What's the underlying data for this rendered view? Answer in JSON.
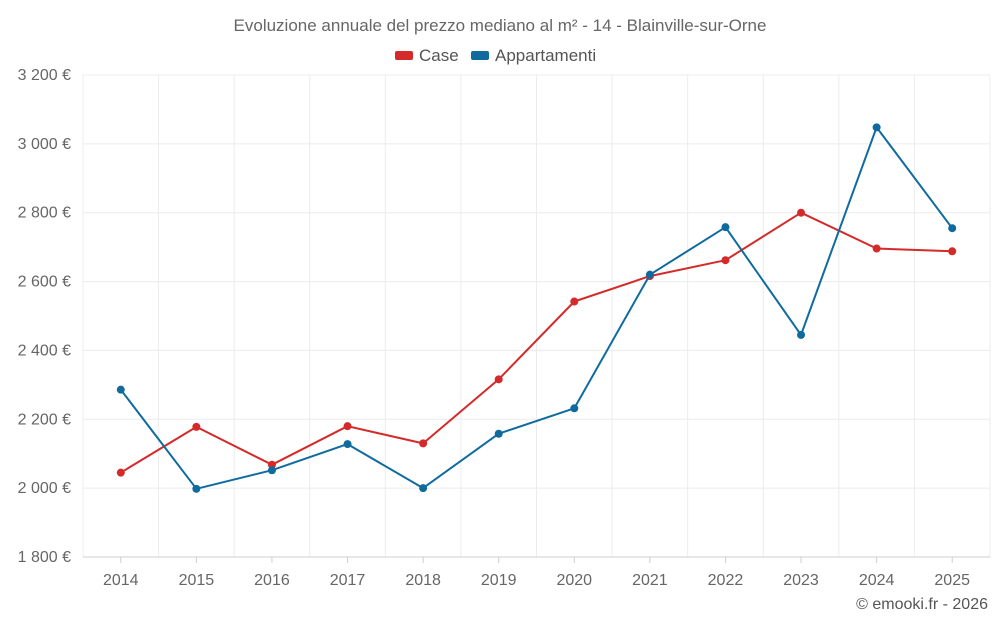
{
  "chart_data": {
    "type": "line",
    "title": "Evoluzione annuale del prezzo mediano al m² - 14 - Blainville-sur-Orne",
    "categories": [
      "2014",
      "2015",
      "2016",
      "2017",
      "2018",
      "2019",
      "2020",
      "2021",
      "2022",
      "2023",
      "2024",
      "2025"
    ],
    "series": [
      {
        "name": "Case",
        "color": "#d42a2a",
        "values": [
          2045,
          2178,
          2068,
          2180,
          2130,
          2316,
          2542,
          2616,
          2662,
          2800,
          2696,
          2688
        ]
      },
      {
        "name": "Appartamenti",
        "color": "#0f6b9e",
        "values": [
          2286,
          1998,
          2052,
          2128,
          2000,
          2158,
          2232,
          2620,
          2758,
          2445,
          3048,
          2755
        ]
      }
    ],
    "ylim": [
      1800,
      3200
    ],
    "yticks": [
      1800,
      2000,
      2200,
      2400,
      2600,
      2800,
      3000,
      3200
    ],
    "ytick_labels": [
      "1 800 €",
      "2 000 €",
      "2 200 €",
      "2 400 €",
      "2 600 €",
      "2 800 €",
      "3 000 €",
      "3 200 €"
    ],
    "legend_position": "top-center",
    "grid": true,
    "credit": "© emooki.fr - 2026"
  }
}
